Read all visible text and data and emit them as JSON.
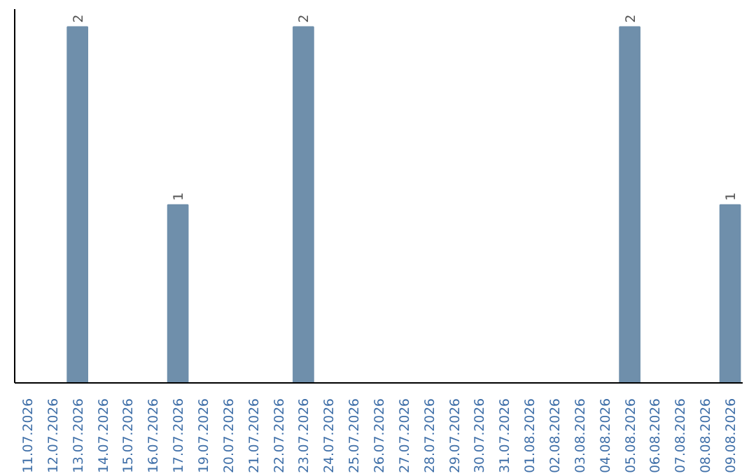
{
  "chart_data": {
    "type": "bar",
    "categories": [
      "11.07.2026",
      "12.07.2026",
      "13.07.2026",
      "14.07.2026",
      "15.07.2026",
      "16.07.2026",
      "17.07.2026",
      "19.07.2026",
      "20.07.2026",
      "21.07.2026",
      "22.07.2026",
      "23.07.2026",
      "24.07.2026",
      "25.07.2026",
      "26.07.2026",
      "27.07.2026",
      "28.07.2026",
      "29.07.2026",
      "30.07.2026",
      "31.07.2026",
      "01.08.2026",
      "02.08.2026",
      "03.08.2026",
      "04.08.2026",
      "05.08.2026",
      "06.08.2026",
      "07.08.2026",
      "08.08.2026",
      "09.08.2026"
    ],
    "values": [
      0,
      0,
      2,
      0,
      0,
      0,
      1,
      0,
      0,
      0,
      0,
      2,
      0,
      0,
      0,
      0,
      0,
      0,
      0,
      0,
      0,
      0,
      0,
      0,
      2,
      0,
      0,
      0,
      1
    ],
    "value_labels": [
      null,
      null,
      "2",
      null,
      null,
      null,
      "1",
      null,
      null,
      null,
      null,
      "2",
      null,
      null,
      null,
      null,
      null,
      null,
      null,
      null,
      null,
      null,
      null,
      null,
      "2",
      null,
      null,
      null,
      "1"
    ],
    "color": "#6f8fab"
  }
}
